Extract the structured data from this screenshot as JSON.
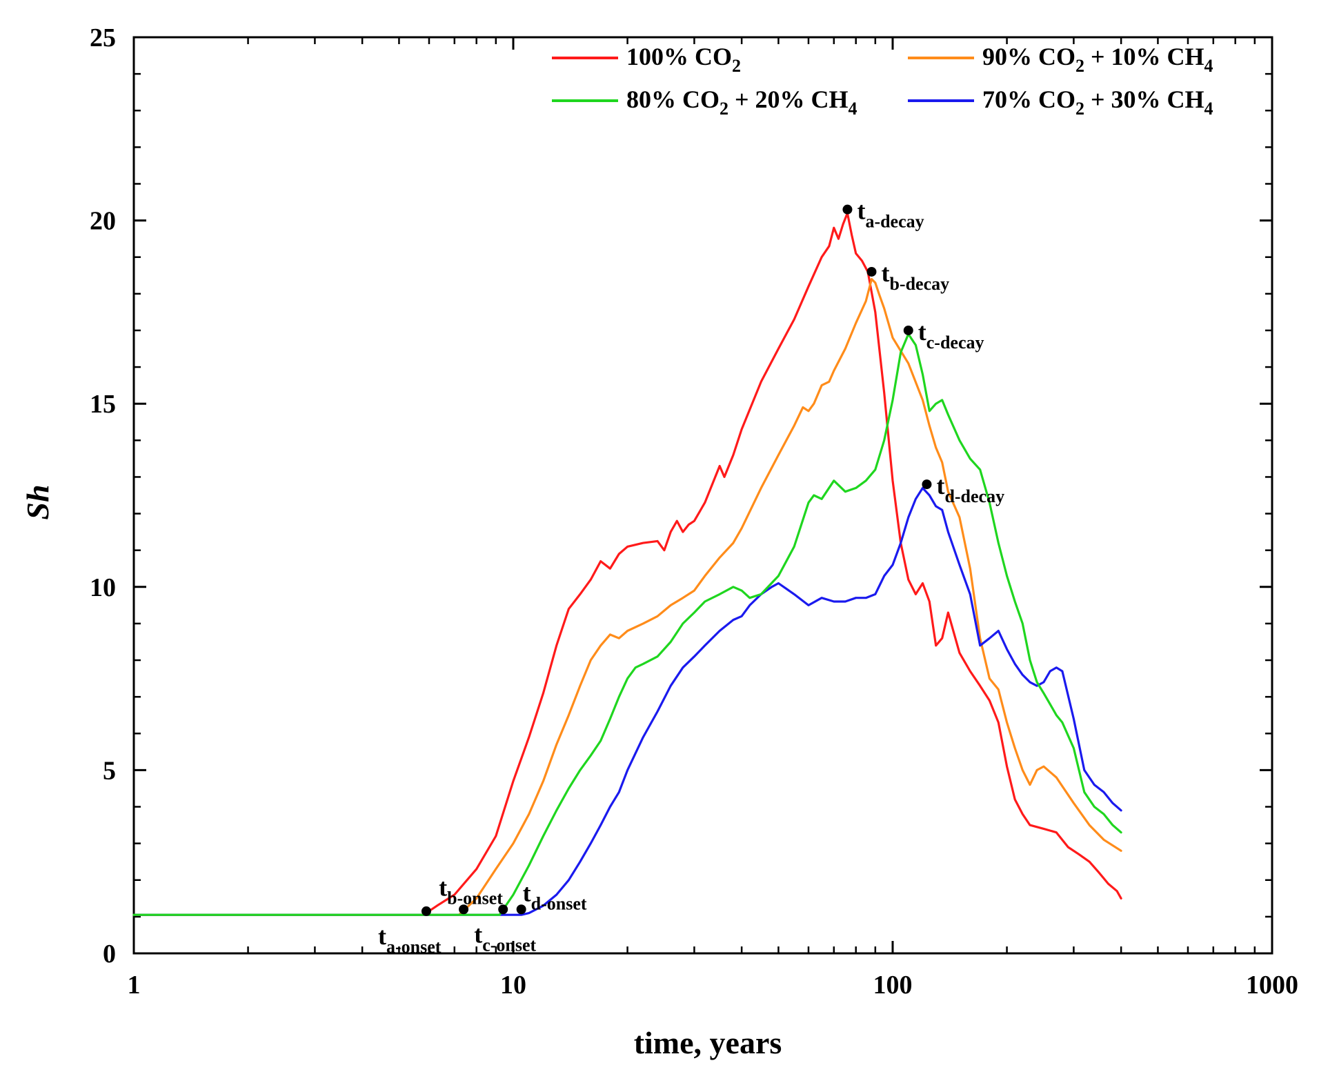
{
  "chart_data": {
    "type": "line",
    "xlabel": "time, years",
    "ylabel": "Sh",
    "x_scale": "log",
    "xlim": [
      1,
      1000
    ],
    "ylim": [
      0,
      25
    ],
    "grid": false,
    "legend_position": "top-right",
    "x_ticks": [
      {
        "value": 1,
        "label": "1"
      },
      {
        "value": 10,
        "label": "10"
      },
      {
        "value": 100,
        "label": "100"
      },
      {
        "value": 1000,
        "label": "1000"
      }
    ],
    "y_ticks": [
      {
        "value": 0,
        "label": "0"
      },
      {
        "value": 5,
        "label": "5"
      },
      {
        "value": 10,
        "label": "10"
      },
      {
        "value": 15,
        "label": "15"
      },
      {
        "value": 20,
        "label": "20"
      },
      {
        "value": 25,
        "label": "25"
      }
    ],
    "series": [
      {
        "name": "100% CO",
        "name_sub": "2",
        "name_rest": "",
        "color": "#ff1a1a",
        "x": [
          1,
          5.8,
          6.3,
          7,
          8,
          9,
          10,
          11,
          12,
          13,
          14,
          15,
          16,
          17,
          18,
          19,
          20,
          22,
          24,
          25,
          26,
          27,
          28,
          29,
          30,
          32,
          35,
          36,
          38,
          40,
          45,
          50,
          55,
          60,
          65,
          68,
          70,
          72,
          74,
          76,
          78,
          80,
          83,
          86,
          90,
          95,
          100,
          105,
          110,
          115,
          120,
          125,
          130,
          135,
          140,
          150,
          160,
          170,
          180,
          190,
          200,
          210,
          220,
          230,
          250,
          270,
          290,
          310,
          330,
          350,
          370,
          390,
          400
        ],
        "y": [
          1.05,
          1.05,
          1.3,
          1.6,
          2.3,
          3.2,
          4.7,
          5.9,
          7.1,
          8.4,
          9.4,
          9.8,
          10.2,
          10.7,
          10.5,
          10.9,
          11.1,
          11.2,
          11.25,
          11.0,
          11.5,
          11.8,
          11.5,
          11.7,
          11.8,
          12.3,
          13.3,
          13.0,
          13.6,
          14.3,
          15.6,
          16.5,
          17.3,
          18.2,
          19.0,
          19.3,
          19.8,
          19.5,
          19.9,
          20.2,
          19.6,
          19.1,
          18.9,
          18.6,
          17.5,
          15.3,
          12.9,
          11.2,
          10.2,
          9.8,
          10.1,
          9.6,
          8.4,
          8.6,
          9.3,
          8.2,
          7.7,
          7.3,
          6.9,
          6.3,
          5.1,
          4.2,
          3.8,
          3.5,
          3.4,
          3.3,
          2.9,
          2.7,
          2.5,
          2.2,
          1.9,
          1.7,
          1.5
        ]
      },
      {
        "name": "90% CO",
        "name_sub": "2",
        "name_rest": " + 10% CH",
        "name_sub2": "4",
        "color": "#ff8c1a",
        "x": [
          1,
          7.2,
          8,
          9,
          10,
          11,
          12,
          13,
          14,
          15,
          16,
          17,
          18,
          19,
          20,
          22,
          24,
          26,
          28,
          30,
          32,
          35,
          38,
          40,
          45,
          50,
          55,
          58,
          60,
          62,
          65,
          68,
          70,
          75,
          80,
          85,
          88,
          90,
          92,
          95,
          100,
          110,
          120,
          125,
          130,
          135,
          140,
          150,
          160,
          170,
          180,
          190,
          200,
          210,
          220,
          230,
          240,
          250,
          270,
          300,
          330,
          360,
          400
        ],
        "y": [
          1.05,
          1.05,
          1.5,
          2.3,
          3.0,
          3.8,
          4.7,
          5.7,
          6.5,
          7.3,
          8.0,
          8.4,
          8.7,
          8.6,
          8.8,
          9.0,
          9.2,
          9.5,
          9.7,
          9.9,
          10.3,
          10.8,
          11.2,
          11.6,
          12.7,
          13.6,
          14.4,
          14.9,
          14.8,
          15.0,
          15.5,
          15.6,
          15.9,
          16.5,
          17.2,
          17.8,
          18.4,
          18.3,
          18.0,
          17.6,
          16.8,
          16.1,
          15.1,
          14.4,
          13.8,
          13.4,
          12.6,
          11.9,
          10.5,
          8.6,
          7.5,
          7.2,
          6.3,
          5.6,
          5.0,
          4.6,
          5.0,
          5.1,
          4.8,
          4.1,
          3.5,
          3.1,
          2.8
        ]
      },
      {
        "name": "80% CO",
        "name_sub": "2",
        "name_rest": " + 20% CH",
        "name_sub2": "4",
        "color": "#1fd61f",
        "x": [
          1,
          9.2,
          10,
          11,
          12,
          13,
          14,
          15,
          16,
          17,
          18,
          19,
          20,
          21,
          22,
          24,
          26,
          28,
          30,
          32,
          35,
          38,
          40,
          42,
          45,
          50,
          55,
          60,
          62,
          65,
          70,
          75,
          80,
          85,
          90,
          95,
          100,
          105,
          110,
          115,
          120,
          125,
          130,
          135,
          140,
          150,
          160,
          170,
          180,
          190,
          200,
          210,
          220,
          230,
          240,
          250,
          260,
          270,
          280,
          300,
          320,
          340,
          360,
          380,
          400
        ],
        "y": [
          1.05,
          1.05,
          1.6,
          2.4,
          3.2,
          3.9,
          4.5,
          5.0,
          5.4,
          5.8,
          6.4,
          7.0,
          7.5,
          7.8,
          7.9,
          8.1,
          8.5,
          9.0,
          9.3,
          9.6,
          9.8,
          10.0,
          9.9,
          9.7,
          9.8,
          10.3,
          11.1,
          12.3,
          12.5,
          12.4,
          12.9,
          12.6,
          12.7,
          12.9,
          13.2,
          14.0,
          15.1,
          16.4,
          16.9,
          16.6,
          15.8,
          14.8,
          15.0,
          15.1,
          14.7,
          14.0,
          13.5,
          13.2,
          12.3,
          11.2,
          10.3,
          9.6,
          9.0,
          8.0,
          7.4,
          7.1,
          6.8,
          6.5,
          6.3,
          5.6,
          4.4,
          4.0,
          3.8,
          3.5,
          3.3
        ]
      },
      {
        "name": "70% CO",
        "name_sub": "2",
        "name_rest": " + 30% CH",
        "name_sub2": "4",
        "color": "#1a1aee",
        "x": [
          1,
          10.5,
          11,
          12,
          13,
          14,
          15,
          16,
          17,
          18,
          19,
          20,
          22,
          24,
          26,
          28,
          30,
          32,
          35,
          38,
          40,
          42,
          45,
          48,
          50,
          55,
          60,
          65,
          70,
          75,
          80,
          85,
          90,
          95,
          100,
          105,
          110,
          115,
          120,
          125,
          130,
          135,
          140,
          150,
          160,
          170,
          180,
          190,
          200,
          210,
          220,
          230,
          240,
          250,
          260,
          270,
          280,
          300,
          320,
          340,
          360,
          380,
          400
        ],
        "y": [
          1.05,
          1.05,
          1.1,
          1.3,
          1.6,
          2.0,
          2.5,
          3.0,
          3.5,
          4.0,
          4.4,
          5.0,
          5.9,
          6.6,
          7.3,
          7.8,
          8.1,
          8.4,
          8.8,
          9.1,
          9.2,
          9.5,
          9.8,
          10.0,
          10.1,
          9.8,
          9.5,
          9.7,
          9.6,
          9.6,
          9.7,
          9.7,
          9.8,
          10.3,
          10.6,
          11.2,
          11.9,
          12.4,
          12.7,
          12.5,
          12.2,
          12.1,
          11.5,
          10.6,
          9.8,
          8.4,
          8.6,
          8.8,
          8.3,
          7.9,
          7.6,
          7.4,
          7.3,
          7.4,
          7.7,
          7.8,
          7.7,
          6.4,
          5.0,
          4.6,
          4.4,
          4.1,
          3.9
        ]
      }
    ],
    "markers": [
      {
        "x": 5.9,
        "y": 1.15,
        "label": "t",
        "sub": "a-onset",
        "pos": "below-left"
      },
      {
        "x": 7.4,
        "y": 1.2,
        "label": "t",
        "sub": "b-onset",
        "pos": "above-left"
      },
      {
        "x": 9.4,
        "y": 1.2,
        "label": "t",
        "sub": "c-onset",
        "pos": "below-right"
      },
      {
        "x": 10.5,
        "y": 1.2,
        "label": "t",
        "sub": "d-onset",
        "pos": "above-right"
      },
      {
        "x": 76,
        "y": 20.3,
        "label": "t",
        "sub": "a-decay",
        "pos": "right"
      },
      {
        "x": 88,
        "y": 18.6,
        "label": "t",
        "sub": "b-decay",
        "pos": "right"
      },
      {
        "x": 110,
        "y": 17.0,
        "label": "t",
        "sub": "c-decay",
        "pos": "right"
      },
      {
        "x": 123,
        "y": 12.8,
        "label": "t",
        "sub": "d-decay",
        "pos": "right"
      }
    ]
  }
}
